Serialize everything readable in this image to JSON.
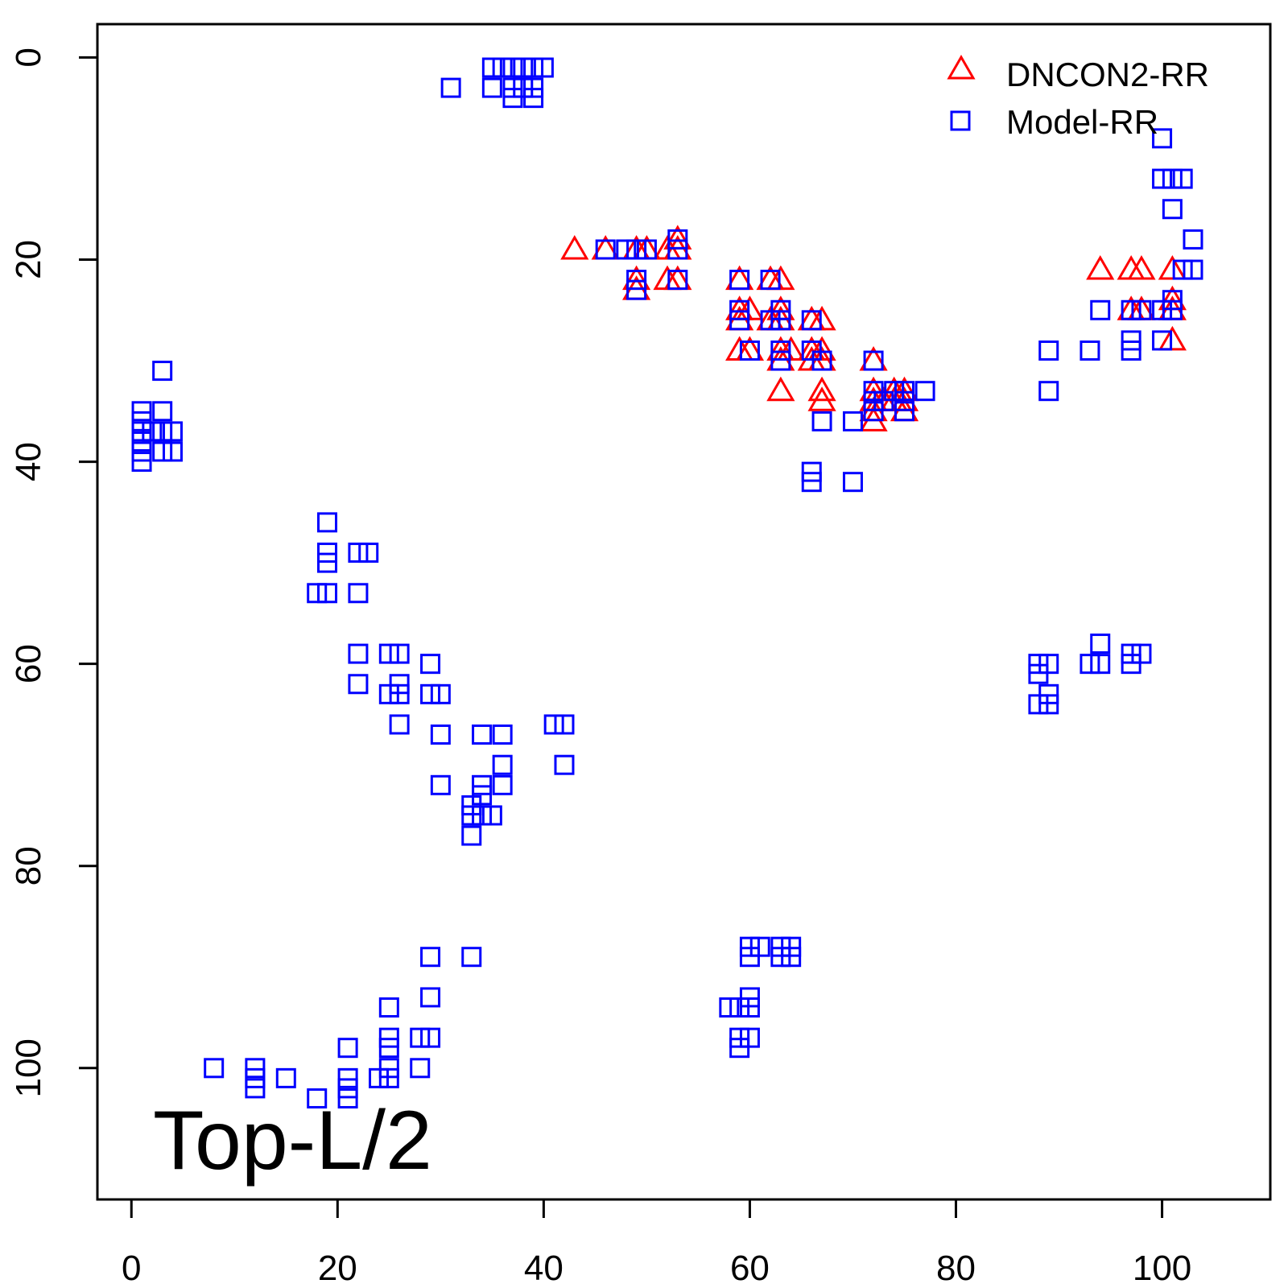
{
  "chart_data": {
    "type": "scatter",
    "title": "",
    "xlabel": "",
    "ylabel": "",
    "xlim": [
      -3.3,
      110.5
    ],
    "ylim": [
      -3.3,
      113.0
    ],
    "y_reversed": true,
    "x_ticks": [
      0,
      20,
      40,
      60,
      80,
      100
    ],
    "y_ticks": [
      0,
      20,
      40,
      60,
      80,
      100
    ],
    "x_tick_labels": [
      "0",
      "20",
      "40",
      "60",
      "80",
      "100"
    ],
    "y_tick_labels": [
      "0",
      "20",
      "40",
      "60",
      "80",
      "100"
    ],
    "annotation": "Top-L/2",
    "legend": {
      "placement": "top-right"
    },
    "series": [
      {
        "name": "DNCON2-RR",
        "marker": "triangle",
        "color": "#ff0000",
        "points": [
          [
            43,
            19
          ],
          [
            46,
            19
          ],
          [
            49,
            19
          ],
          [
            50,
            19
          ],
          [
            52,
            19
          ],
          [
            53,
            18
          ],
          [
            53,
            19
          ],
          [
            49,
            22
          ],
          [
            49,
            23
          ],
          [
            52,
            22
          ],
          [
            53,
            22
          ],
          [
            59,
            22
          ],
          [
            62,
            22
          ],
          [
            63,
            22
          ],
          [
            59,
            25
          ],
          [
            60,
            25
          ],
          [
            59,
            26
          ],
          [
            62,
            26
          ],
          [
            63,
            25
          ],
          [
            63,
            26
          ],
          [
            66,
            26
          ],
          [
            67,
            26
          ],
          [
            59,
            29
          ],
          [
            60,
            29
          ],
          [
            63,
            29
          ],
          [
            64,
            29
          ],
          [
            66,
            29
          ],
          [
            67,
            29
          ],
          [
            63,
            30
          ],
          [
            66,
            30
          ],
          [
            67,
            30
          ],
          [
            63,
            33
          ],
          [
            67,
            33
          ],
          [
            67,
            34
          ],
          [
            72,
            30
          ],
          [
            72,
            33
          ],
          [
            72,
            34
          ],
          [
            72,
            35
          ],
          [
            72,
            36
          ],
          [
            73,
            34
          ],
          [
            74,
            33
          ],
          [
            74,
            34
          ],
          [
            75,
            33
          ],
          [
            75,
            34
          ],
          [
            75,
            35
          ],
          [
            94,
            21
          ],
          [
            97,
            21
          ],
          [
            98,
            21
          ],
          [
            101,
            21
          ],
          [
            97,
            25
          ],
          [
            98,
            25
          ],
          [
            101,
            24
          ],
          [
            101,
            25
          ],
          [
            101,
            28
          ]
        ]
      },
      {
        "name": "Model-RR",
        "marker": "square",
        "color": "#0000ff",
        "points": [
          [
            31,
            3
          ],
          [
            35,
            1
          ],
          [
            35,
            3
          ],
          [
            36,
            1
          ],
          [
            37,
            1
          ],
          [
            37,
            3
          ],
          [
            37,
            4
          ],
          [
            38,
            1
          ],
          [
            38,
            3
          ],
          [
            39,
            1
          ],
          [
            39,
            3
          ],
          [
            39,
            4
          ],
          [
            40,
            1
          ],
          [
            3,
            31
          ],
          [
            1,
            35
          ],
          [
            1,
            36
          ],
          [
            1,
            37
          ],
          [
            1,
            38
          ],
          [
            1,
            39
          ],
          [
            1,
            40
          ],
          [
            2,
            37
          ],
          [
            3,
            35
          ],
          [
            3,
            37
          ],
          [
            3,
            39
          ],
          [
            4,
            37
          ],
          [
            4,
            39
          ],
          [
            19,
            46
          ],
          [
            19,
            49
          ],
          [
            19,
            50
          ],
          [
            22,
            49
          ],
          [
            23,
            49
          ],
          [
            18,
            53
          ],
          [
            19,
            53
          ],
          [
            22,
            53
          ],
          [
            22,
            59
          ],
          [
            22,
            62
          ],
          [
            25,
            59
          ],
          [
            26,
            59
          ],
          [
            25,
            63
          ],
          [
            26,
            62
          ],
          [
            26,
            63
          ],
          [
            26,
            66
          ],
          [
            29,
            60
          ],
          [
            29,
            63
          ],
          [
            30,
            63
          ],
          [
            30,
            67
          ],
          [
            30,
            72
          ],
          [
            34,
            67
          ],
          [
            36,
            67
          ],
          [
            36,
            70
          ],
          [
            36,
            72
          ],
          [
            34,
            72
          ],
          [
            34,
            73
          ],
          [
            33,
            74
          ],
          [
            33,
            75
          ],
          [
            34,
            75
          ],
          [
            35,
            75
          ],
          [
            33,
            77
          ],
          [
            41,
            66
          ],
          [
            42,
            66
          ],
          [
            42,
            70
          ],
          [
            8,
            100
          ],
          [
            12,
            100
          ],
          [
            12,
            101
          ],
          [
            12,
            102
          ],
          [
            15,
            101
          ],
          [
            18,
            103
          ],
          [
            21,
            98
          ],
          [
            21,
            101
          ],
          [
            21,
            102
          ],
          [
            21,
            103
          ],
          [
            24,
            101
          ],
          [
            25,
            94
          ],
          [
            25,
            97
          ],
          [
            25,
            98
          ],
          [
            25,
            100
          ],
          [
            25,
            101
          ],
          [
            28,
            97
          ],
          [
            29,
            97
          ],
          [
            28,
            100
          ],
          [
            29,
            89
          ],
          [
            29,
            93
          ],
          [
            33,
            89
          ],
          [
            58,
            94
          ],
          [
            59,
            94
          ],
          [
            60,
            93
          ],
          [
            60,
            94
          ],
          [
            59,
            97
          ],
          [
            59,
            98
          ],
          [
            60,
            97
          ],
          [
            60,
            88
          ],
          [
            60,
            89
          ],
          [
            61,
            88
          ],
          [
            63,
            88
          ],
          [
            63,
            89
          ],
          [
            64,
            88
          ],
          [
            64,
            89
          ],
          [
            46,
            19
          ],
          [
            48,
            19
          ],
          [
            49,
            19
          ],
          [
            50,
            19
          ],
          [
            53,
            18
          ],
          [
            53,
            19
          ],
          [
            49,
            22
          ],
          [
            49,
            23
          ],
          [
            53,
            22
          ],
          [
            59,
            22
          ],
          [
            59,
            25
          ],
          [
            59,
            26
          ],
          [
            60,
            29
          ],
          [
            62,
            22
          ],
          [
            62,
            26
          ],
          [
            63,
            25
          ],
          [
            63,
            26
          ],
          [
            63,
            29
          ],
          [
            63,
            30
          ],
          [
            66,
            26
          ],
          [
            66,
            29
          ],
          [
            67,
            30
          ],
          [
            66,
            41
          ],
          [
            66,
            42
          ],
          [
            67,
            36
          ],
          [
            70,
            36
          ],
          [
            70,
            42
          ],
          [
            72,
            30
          ],
          [
            72,
            33
          ],
          [
            72,
            34
          ],
          [
            72,
            35
          ],
          [
            73,
            34
          ],
          [
            74,
            33
          ],
          [
            75,
            33
          ],
          [
            75,
            34
          ],
          [
            75,
            35
          ],
          [
            77,
            33
          ],
          [
            88,
            60
          ],
          [
            89,
            60
          ],
          [
            88,
            61
          ],
          [
            88,
            64
          ],
          [
            89,
            63
          ],
          [
            89,
            64
          ],
          [
            89,
            29
          ],
          [
            89,
            33
          ],
          [
            93,
            29
          ],
          [
            93,
            60
          ],
          [
            94,
            58
          ],
          [
            94,
            60
          ],
          [
            94,
            25
          ],
          [
            97,
            59
          ],
          [
            98,
            59
          ],
          [
            97,
            60
          ],
          [
            97,
            25
          ],
          [
            97,
            28
          ],
          [
            97,
            29
          ],
          [
            98,
            25
          ],
          [
            100,
            8
          ],
          [
            100,
            12
          ],
          [
            101,
            12
          ],
          [
            102,
            12
          ],
          [
            101,
            15
          ],
          [
            103,
            18
          ],
          [
            103,
            21
          ],
          [
            102,
            21
          ],
          [
            100,
            25
          ],
          [
            101,
            24
          ],
          [
            101,
            25
          ],
          [
            100,
            28
          ]
        ]
      }
    ]
  },
  "legend_items": [
    {
      "label": "DNCON2-RR",
      "marker": "triangle",
      "color": "#ff0000"
    },
    {
      "label": "Model-RR",
      "marker": "square",
      "color": "#0000ff"
    }
  ]
}
